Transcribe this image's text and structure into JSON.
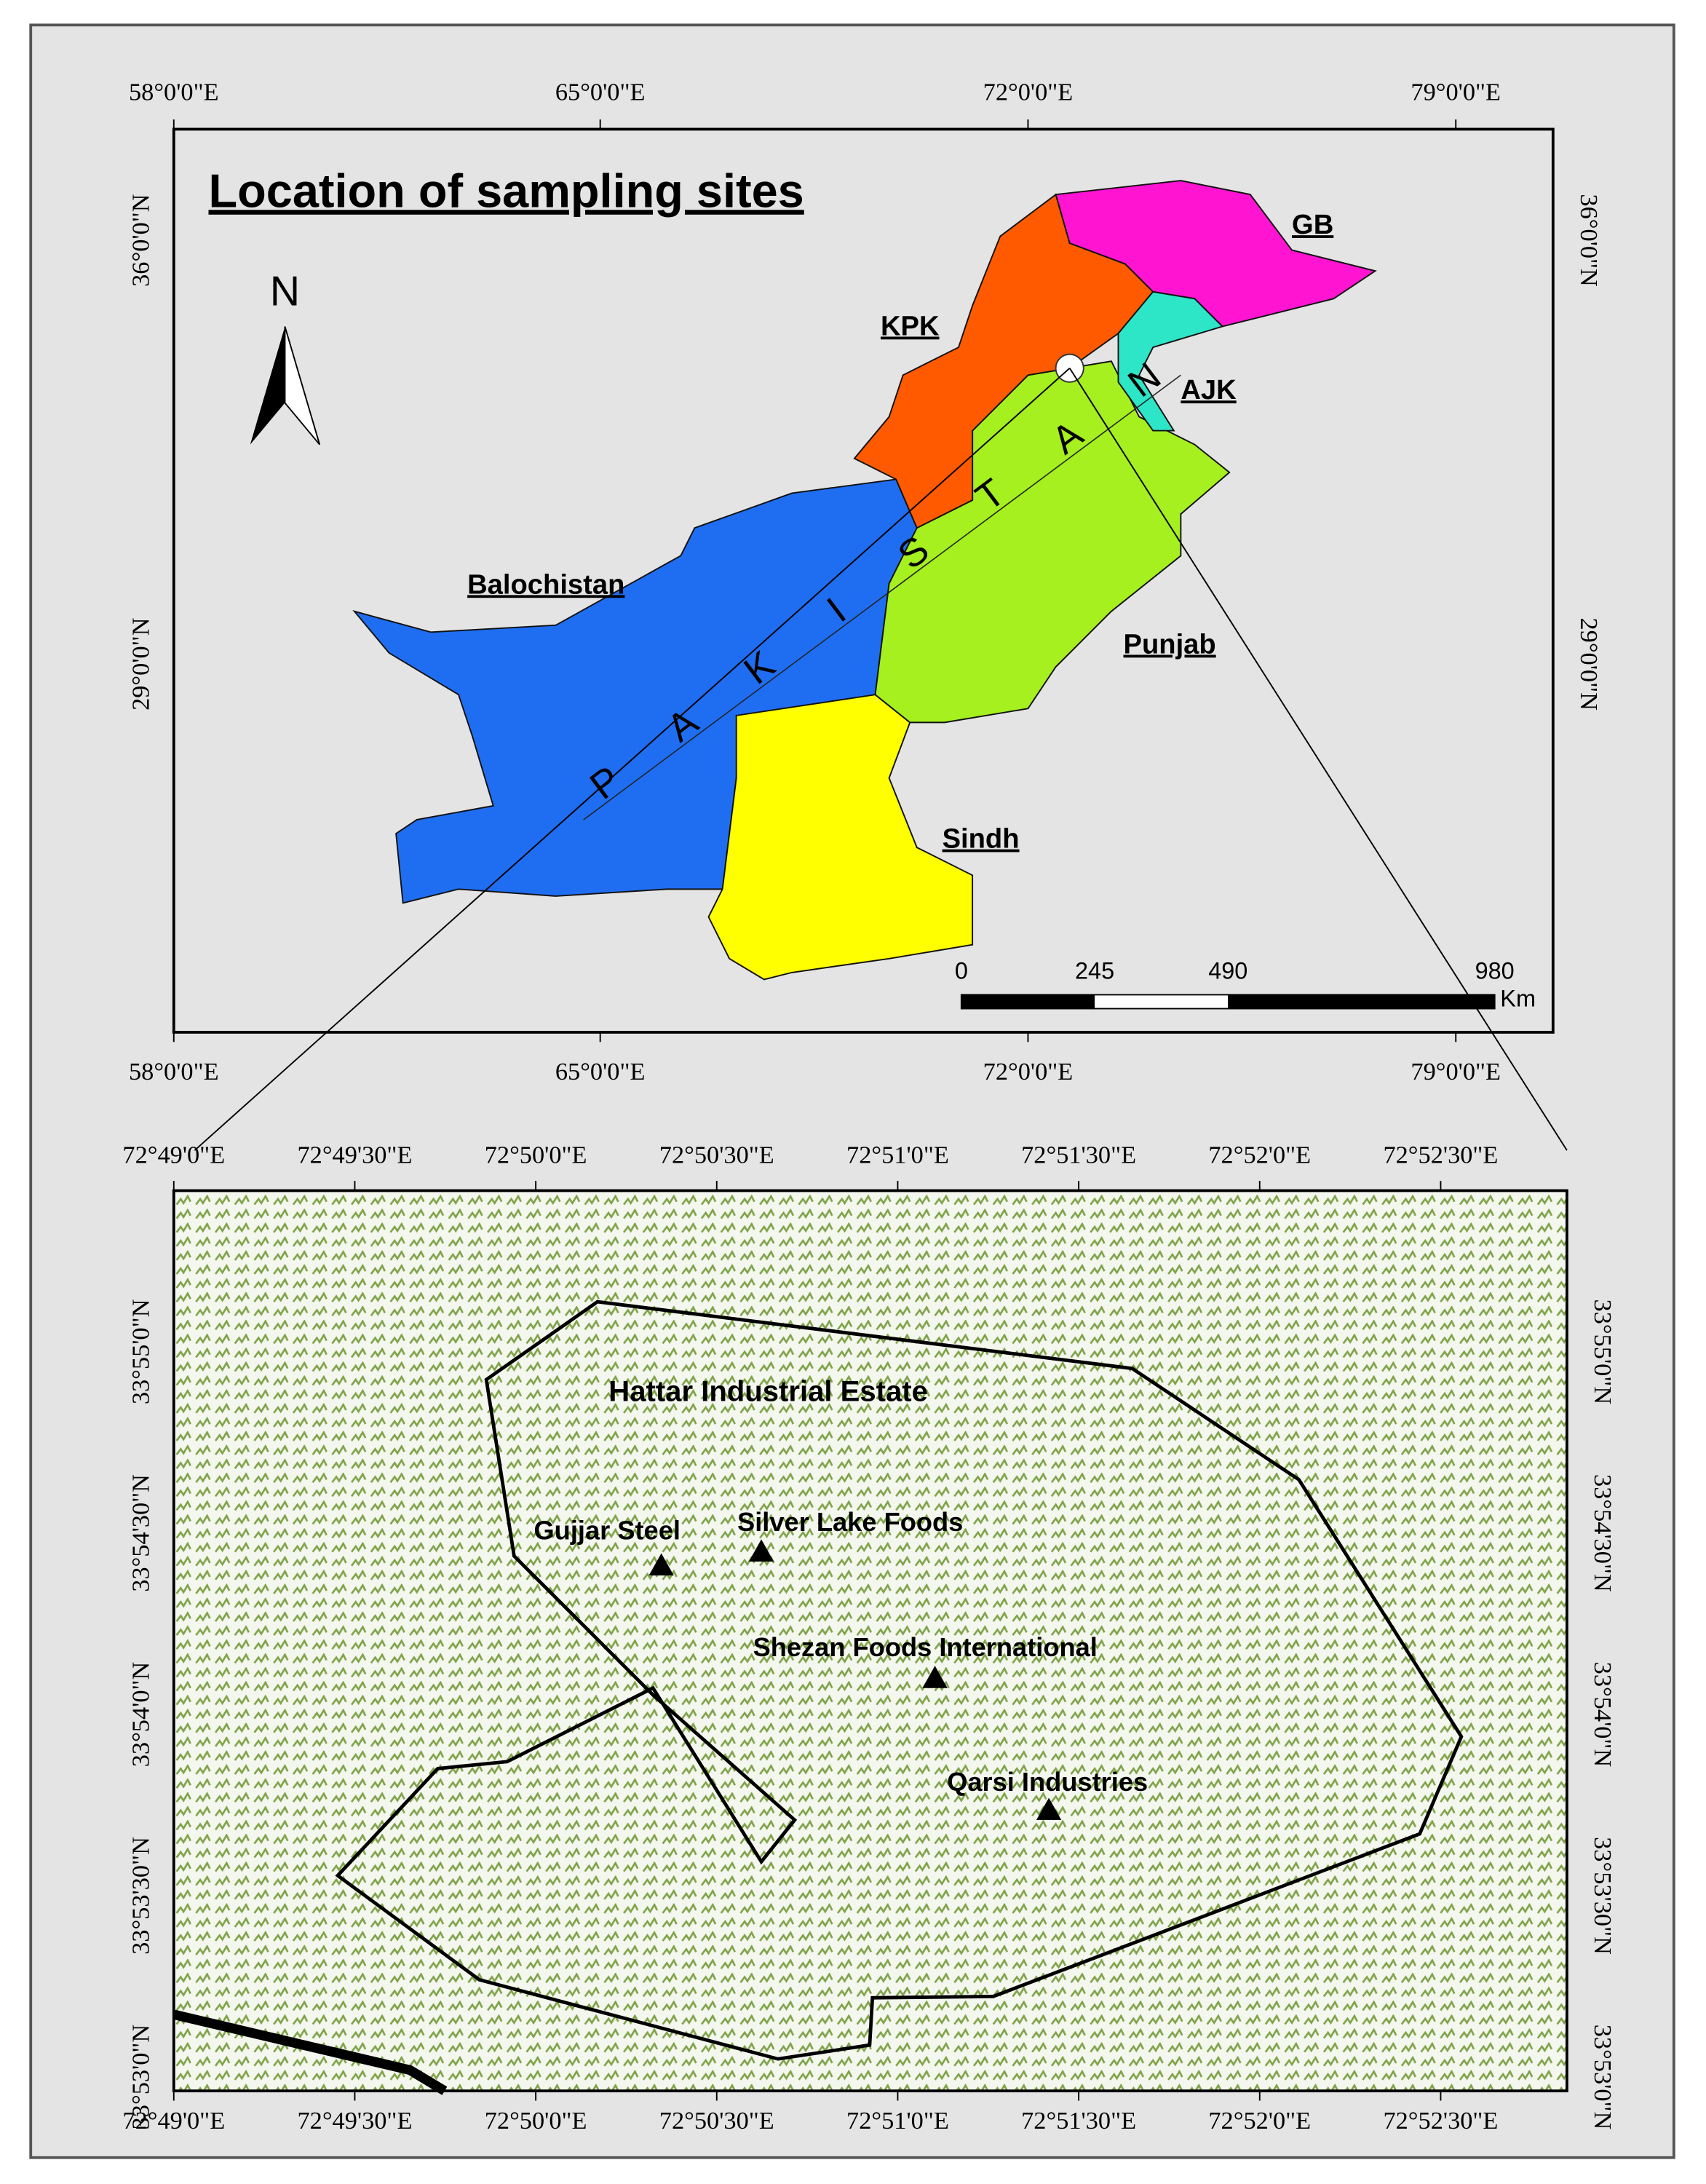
{
  "inset_map": {
    "title": "Location of sampling sites",
    "north": "N",
    "lon_labels": [
      "58°0'0\"E",
      "65°0'0\"E",
      "72°0'0\"E",
      "79°0'0\"E"
    ],
    "lat_labels": [
      "36°0'0\"N",
      "29°0'0\"N"
    ],
    "regions": [
      "GB",
      "KPK",
      "AJK",
      "Balochistan",
      "Punjab",
      "Sindh"
    ],
    "country_letters": [
      "P",
      "A",
      "K",
      "I",
      "S",
      "T",
      "A",
      "N"
    ],
    "scale_bar": {
      "ticks": [
        0,
        245,
        490,
        980
      ],
      "unit": "Km"
    }
  },
  "site_map": {
    "lon_labels": [
      "72°49'0\"E",
      "72°49'30\"E",
      "72°50'0\"E",
      "72°50'30\"E",
      "72°51'0\"E",
      "72°51'30\"E",
      "72°52'0\"E",
      "72°52'30\"E"
    ],
    "lat_labels": [
      "33°55'0\"N",
      "33°54'30\"N",
      "33°54'0\"N",
      "33°53'30\"N",
      "33°53'0\"N"
    ],
    "estate": "Hattar Industrial Estate",
    "sites": [
      "Gujjar Steel",
      "Silver Lake Foods",
      "Shezan Foods International",
      "Qarsi Industries"
    ]
  }
}
